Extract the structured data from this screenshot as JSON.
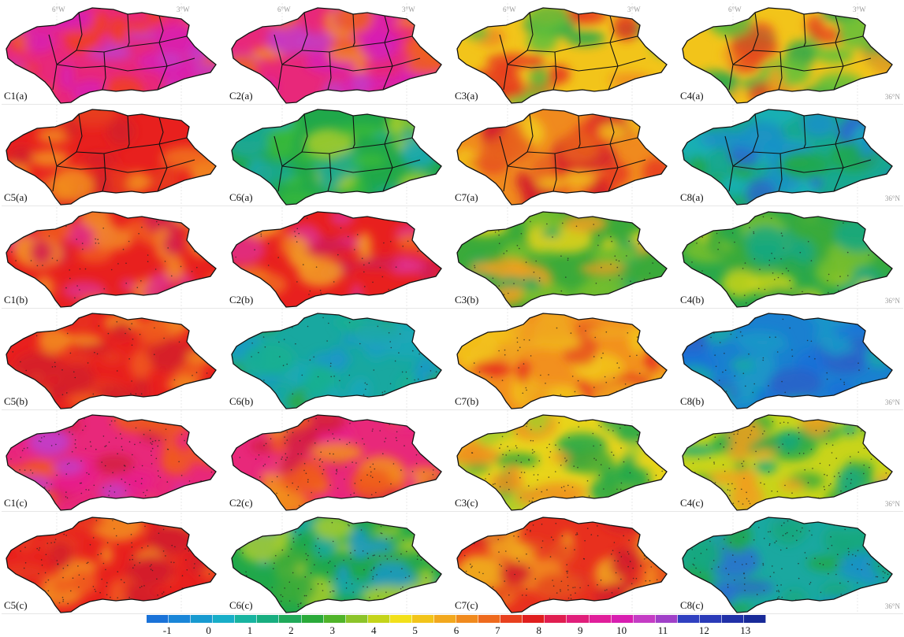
{
  "panels": [
    {
      "label": "C1(a)",
      "palette": [
        "#e8287a",
        "#d81fb3",
        "#f0401c",
        "#c43cc4",
        "#ee5a22"
      ]
    },
    {
      "label": "C2(a)",
      "palette": [
        "#e8287a",
        "#d81fb3",
        "#f0601c",
        "#c43cc4",
        "#f28a24"
      ]
    },
    {
      "label": "C3(a)",
      "palette": [
        "#f2c41a",
        "#e83a1e",
        "#60c03a",
        "#f08a1e",
        "#2aa84a"
      ]
    },
    {
      "label": "C4(a)",
      "palette": [
        "#f2c41a",
        "#e84a1e",
        "#60c03a",
        "#f0a01e",
        "#2aa84a"
      ]
    },
    {
      "label": "C5(a)",
      "palette": [
        "#e8201e",
        "#f06a1e",
        "#d41c2a",
        "#f2901e",
        "#e83a1e"
      ]
    },
    {
      "label": "C6(a)",
      "palette": [
        "#20a84a",
        "#a8cc2a",
        "#1aa890",
        "#3aba3a",
        "#18a8b8"
      ]
    },
    {
      "label": "C7(a)",
      "palette": [
        "#f08a1e",
        "#e83a1e",
        "#f2c41a",
        "#e8601e",
        "#d41c2a"
      ]
    },
    {
      "label": "C8(a)",
      "palette": [
        "#18a890",
        "#1a90c8",
        "#20a84a",
        "#2a6ad0",
        "#18b0b8"
      ]
    },
    {
      "label": "C1(b)",
      "palette": [
        "#e8201e",
        "#e0308a",
        "#f05a1e",
        "#d41c50",
        "#f28a24"
      ]
    },
    {
      "label": "C2(b)",
      "palette": [
        "#e8201e",
        "#e0308a",
        "#f06a1e",
        "#f2a024",
        "#d41c50"
      ]
    },
    {
      "label": "C3(b)",
      "palette": [
        "#3aaa3a",
        "#e8d41a",
        "#18a860",
        "#f0a01e",
        "#7ac02a"
      ]
    },
    {
      "label": "C4(b)",
      "palette": [
        "#2aa84a",
        "#c8d41a",
        "#18a880",
        "#7ac02a",
        "#3aaa3a"
      ]
    },
    {
      "label": "C5(b)",
      "palette": [
        "#e8201e",
        "#f05a1e",
        "#f2901e",
        "#d41c2a",
        "#e83a1e"
      ]
    },
    {
      "label": "C6(b)",
      "palette": [
        "#18a8a0",
        "#1a98c8",
        "#2aa84a",
        "#1aa8b8",
        "#18b090"
      ]
    },
    {
      "label": "C7(b)",
      "palette": [
        "#f2901e",
        "#f2c41a",
        "#e8501e",
        "#f0a81e",
        "#e8301e"
      ]
    },
    {
      "label": "C8(b)",
      "palette": [
        "#1a80d0",
        "#1a98c8",
        "#2a60c8",
        "#18a8a8",
        "#1a70d8"
      ]
    },
    {
      "label": "C1(c)",
      "palette": [
        "#e8287a",
        "#d41c40",
        "#e81e8a",
        "#f05a1e",
        "#c43cc4"
      ]
    },
    {
      "label": "C2(c)",
      "palette": [
        "#e8287a",
        "#f05a1e",
        "#e81e8a",
        "#f2901e",
        "#d41c40"
      ]
    },
    {
      "label": "C3(c)",
      "palette": [
        "#e8d41a",
        "#3aaa3a",
        "#f0901e",
        "#20a84a",
        "#a8cc2a"
      ]
    },
    {
      "label": "C4(c)",
      "palette": [
        "#c8d41a",
        "#20a84a",
        "#3aaa3a",
        "#f0a01e",
        "#18a880"
      ]
    },
    {
      "label": "C5(c)",
      "palette": [
        "#e8201e",
        "#f05a1e",
        "#d41c2a",
        "#f2901e",
        "#e83a1e"
      ]
    },
    {
      "label": "C6(c)",
      "palette": [
        "#20a84a",
        "#18a8a0",
        "#a8cc2a",
        "#3aaa3a",
        "#1a98c8"
      ]
    },
    {
      "label": "C7(c)",
      "palette": [
        "#e8301e",
        "#f2901e",
        "#d41c2a",
        "#f0a81e",
        "#e8501e"
      ]
    },
    {
      "label": "C8(c)",
      "palette": [
        "#1aa8a0",
        "#20a84a",
        "#1a90c8",
        "#18a880",
        "#2a70d0"
      ]
    }
  ],
  "axis_labels": {
    "lon_6w": "6°W",
    "lon_3w": "3°W",
    "lat_36n": "36°N"
  },
  "colorbar": {
    "colors": [
      "#1a72d8",
      "#1a86d8",
      "#189ad0",
      "#18aec8",
      "#18b4a0",
      "#18ae80",
      "#20aa5a",
      "#2aaa3a",
      "#50b42a",
      "#8cc42a",
      "#c4d41a",
      "#f2e01a",
      "#f2c41a",
      "#f2a81e",
      "#f08a1e",
      "#ee6a1e",
      "#e8401e",
      "#e01e1e",
      "#e01e50",
      "#e01e7a",
      "#e01e9a",
      "#d81eb0",
      "#c43cc4",
      "#a040c8",
      "#3040c0",
      "#2a3ab8",
      "#2030a8",
      "#182a98"
    ],
    "ticks": [
      "-1",
      "0",
      "1",
      "2",
      "3",
      "4",
      "5",
      "6",
      "7",
      "8",
      "9",
      "10",
      "11",
      "12",
      "13"
    ]
  }
}
